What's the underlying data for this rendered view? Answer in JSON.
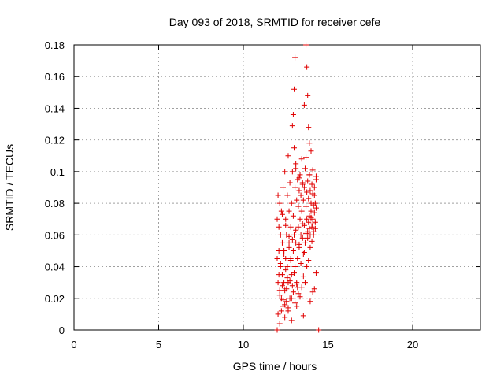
{
  "chart_data": {
    "type": "scatter",
    "title": "Day 093 of 2018, SRMTID for receiver cefe",
    "xlabel": "GPS time / hours",
    "ylabel": "SRMTID / TECUs",
    "xlim": [
      0,
      24
    ],
    "ylim": [
      0,
      0.18
    ],
    "xticks": [
      "0",
      "5",
      "10",
      "15",
      "20"
    ],
    "xtick_values": [
      0,
      5,
      10,
      15,
      20
    ],
    "yticks": [
      "0",
      "0.02",
      "0.04",
      "0.06",
      "0.08",
      "0.1",
      "0.12",
      "0.14",
      "0.16",
      "0.18"
    ],
    "ytick_values": [
      0,
      0.02,
      0.04,
      0.06,
      0.08,
      0.1,
      0.12,
      0.14,
      0.16,
      0.18
    ],
    "grid": true,
    "marker": "plus",
    "marker_color": "#e00000",
    "series": [
      {
        "name": "",
        "x": [
          12.0,
          12.0,
          12.05,
          12.05,
          12.1,
          12.1,
          12.15,
          12.15,
          12.2,
          12.2,
          12.25,
          12.25,
          12.3,
          12.3,
          12.35,
          12.35,
          12.4,
          12.4,
          12.45,
          12.45,
          12.5,
          12.5,
          12.55,
          12.55,
          12.6,
          12.6,
          12.65,
          12.65,
          12.7,
          12.7,
          12.75,
          12.75,
          12.8,
          12.8,
          12.85,
          12.85,
          12.9,
          12.9,
          12.95,
          12.95,
          13.0,
          13.0,
          13.05,
          13.05,
          13.1,
          13.1,
          13.15,
          13.15,
          13.2,
          13.2,
          13.25,
          13.25,
          13.3,
          13.3,
          13.35,
          13.35,
          13.4,
          13.4,
          13.45,
          13.45,
          13.5,
          13.5,
          13.55,
          13.55,
          13.6,
          13.6,
          13.65,
          13.65,
          13.7,
          13.7,
          13.75,
          13.75,
          13.8,
          13.8,
          13.85,
          13.85,
          13.9,
          13.9,
          13.95,
          13.95,
          14.0,
          14.0,
          14.05,
          14.05,
          14.1,
          14.1,
          14.15,
          14.15,
          14.2,
          14.2,
          14.25,
          14.25,
          14.3,
          14.3,
          12.1,
          12.2,
          12.3,
          12.4,
          12.5,
          12.6,
          12.7,
          12.8,
          12.9,
          13.0,
          13.1,
          13.2,
          13.3,
          13.4,
          13.5,
          13.6,
          13.7,
          13.8,
          13.9,
          14.0,
          14.1,
          14.2,
          12.15,
          12.35,
          12.55,
          12.75,
          12.95,
          13.15,
          13.35,
          13.55,
          13.75,
          13.95,
          14.15,
          12.05,
          12.25,
          12.45,
          12.65,
          12.85,
          13.05,
          13.25,
          13.45,
          13.65,
          13.85,
          14.05,
          14.25,
          12.9,
          12.95,
          13.0,
          13.05,
          13.6,
          13.7,
          13.75,
          13.8,
          13.85,
          13.9,
          14.0,
          14.3,
          12.15,
          12.45,
          12.65,
          12.85,
          13.15,
          13.55,
          13.95,
          14.1,
          14.2,
          12.3,
          12.5,
          12.7,
          13.1,
          13.3,
          13.5,
          13.7,
          13.9,
          14.1,
          14.3,
          12.0,
          14.45
        ],
        "y": [
          0.07,
          0.045,
          0.085,
          0.03,
          0.065,
          0.05,
          0.08,
          0.025,
          0.06,
          0.04,
          0.075,
          0.02,
          0.055,
          0.035,
          0.09,
          0.015,
          0.05,
          0.03,
          0.1,
          0.025,
          0.07,
          0.045,
          0.06,
          0.018,
          0.085,
          0.04,
          0.11,
          0.03,
          0.075,
          0.055,
          0.093,
          0.02,
          0.065,
          0.045,
          0.08,
          0.035,
          0.1,
          0.028,
          0.072,
          0.05,
          0.115,
          0.06,
          0.09,
          0.04,
          0.105,
          0.055,
          0.082,
          0.03,
          0.095,
          0.045,
          0.078,
          0.065,
          0.088,
          0.052,
          0.098,
          0.07,
          0.085,
          0.06,
          0.108,
          0.075,
          0.092,
          0.058,
          0.082,
          0.048,
          0.09,
          0.066,
          0.102,
          0.055,
          0.078,
          0.06,
          0.087,
          0.07,
          0.094,
          0.062,
          0.083,
          0.068,
          0.098,
          0.072,
          0.088,
          0.06,
          0.08,
          0.075,
          0.092,
          0.065,
          0.086,
          0.07,
          0.079,
          0.062,
          0.09,
          0.074,
          0.068,
          0.08,
          0.095,
          0.077,
          0.035,
          0.042,
          0.028,
          0.048,
          0.038,
          0.033,
          0.052,
          0.044,
          0.057,
          0.036,
          0.063,
          0.027,
          0.054,
          0.042,
          0.067,
          0.049,
          0.061,
          0.058,
          0.064,
          0.071,
          0.067,
          0.085,
          0.022,
          0.019,
          0.026,
          0.031,
          0.024,
          0.029,
          0.021,
          0.034,
          0.04,
          0.052,
          0.06,
          0.01,
          0.012,
          0.016,
          0.014,
          0.02,
          0.017,
          0.023,
          0.027,
          0.03,
          0.044,
          0.056,
          0.064,
          0.129,
          0.136,
          0.152,
          0.172,
          0.142,
          0.18,
          0.166,
          0.148,
          0.128,
          0.118,
          0.113,
          0.036,
          0.004,
          0.008,
          0.012,
          0.006,
          0.015,
          0.009,
          0.018,
          0.024,
          0.026,
          0.073,
          0.066,
          0.059,
          0.102,
          0.096,
          0.093,
          0.109,
          0.098,
          0.101,
          0.097,
          0.0,
          0.0
        ]
      }
    ]
  }
}
